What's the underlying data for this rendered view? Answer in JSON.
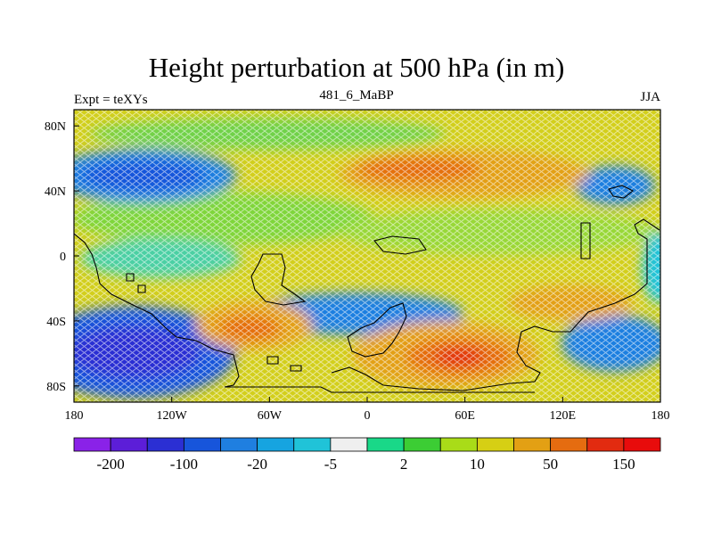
{
  "title": "Height perturbation at 500 hPa (in m)",
  "left_string": "Expt = teXYs",
  "center_string": "481_6_MaBP",
  "right_string": "JJA",
  "map": {
    "projection": "cylindrical equidistant",
    "lon_range": [
      -180,
      180
    ],
    "lat_range": [
      -90,
      90
    ],
    "x_ticks": [
      {
        "value": -180,
        "label": "180"
      },
      {
        "value": -120,
        "label": "120W"
      },
      {
        "value": -60,
        "label": "60W"
      },
      {
        "value": 0,
        "label": "0"
      },
      {
        "value": 60,
        "label": "60E"
      },
      {
        "value": 120,
        "label": "120E"
      },
      {
        "value": 180,
        "label": "180"
      }
    ],
    "y_ticks": [
      {
        "value": 80,
        "label": "80N"
      },
      {
        "value": 40,
        "label": "40N"
      },
      {
        "value": 0,
        "label": "0"
      },
      {
        "value": -40,
        "label": "40S"
      },
      {
        "value": -80,
        "label": "80S"
      }
    ],
    "background_level": "-5 to 10",
    "features": [
      {
        "lon": -145,
        "lat": 50,
        "level": -20,
        "shape": "negative center"
      },
      {
        "lon": 150,
        "lat": 42,
        "level": -20,
        "shape": "negative center"
      },
      {
        "lon": -125,
        "lat": -58,
        "level": -100,
        "shape": "negative center"
      },
      {
        "lon": 10,
        "lat": -35,
        "level": -20,
        "shape": "negative band"
      },
      {
        "lon": 170,
        "lat": -50,
        "level": -20,
        "shape": "negative center"
      },
      {
        "lon": 40,
        "lat": 50,
        "level": 50,
        "shape": "positive band"
      },
      {
        "lon": -70,
        "lat": -45,
        "level": 150,
        "shape": "positive center"
      },
      {
        "lon": 55,
        "lat": -60,
        "level": 150,
        "shape": "positive center"
      },
      {
        "lon": 135,
        "lat": -30,
        "level": 50,
        "shape": "positive center"
      }
    ]
  },
  "colorbar": {
    "colors": [
      "#8a22e8",
      "#5c1ed8",
      "#2b2fd3",
      "#1755db",
      "#1f7fe0",
      "#16a4e0",
      "#20c3d8",
      "#efefef",
      "#19d888",
      "#3ccd34",
      "#a9dc18",
      "#d6cf14",
      "#e3a014",
      "#e56c10",
      "#e22b10",
      "#e80c0c"
    ],
    "labels": [
      {
        "boundary": 1,
        "text": "-200"
      },
      {
        "boundary": 3,
        "text": "-100"
      },
      {
        "boundary": 5,
        "text": "-20"
      },
      {
        "boundary": 7,
        "text": "-5"
      },
      {
        "boundary": 9,
        "text": "2"
      },
      {
        "boundary": 11,
        "text": "10"
      },
      {
        "boundary": 13,
        "text": "50"
      },
      {
        "boundary": 15,
        "text": "150"
      }
    ]
  }
}
